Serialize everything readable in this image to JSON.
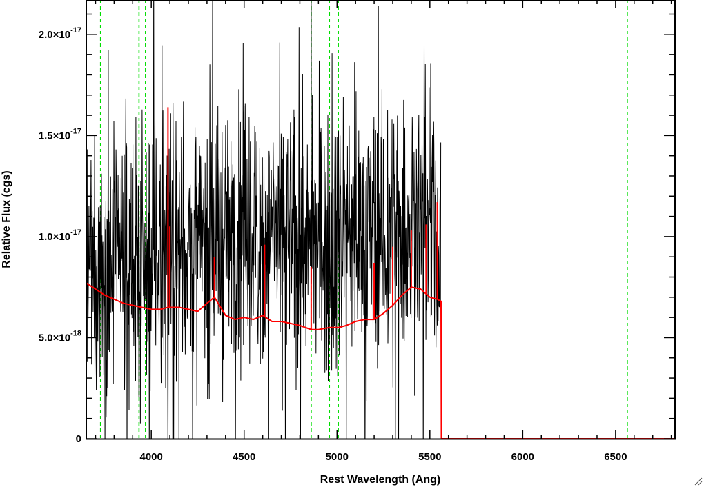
{
  "chart_data": {
    "type": "line",
    "xlabel": "Rest Wavelength (Ang)",
    "ylabel": "Relative Flux (cgs)",
    "xlim": [
      3650,
      6820
    ],
    "ylim": [
      0,
      2.17e-17
    ],
    "x_ticks": [
      {
        "value": 4000,
        "label": "4000"
      },
      {
        "value": 4500,
        "label": "4500"
      },
      {
        "value": 5000,
        "label": "5000"
      },
      {
        "value": 5500,
        "label": "5500"
      },
      {
        "value": 6000,
        "label": "6000"
      },
      {
        "value": 6500,
        "label": "6500"
      }
    ],
    "y_ticks": [
      {
        "value": 0,
        "mantissa": "0",
        "exponent": ""
      },
      {
        "value": 5e-18,
        "mantissa": "5.0×10",
        "exponent": "-18"
      },
      {
        "value": 1e-17,
        "mantissa": "1.0×10",
        "exponent": "-17"
      },
      {
        "value": 1.5e-17,
        "mantissa": "1.5×10",
        "exponent": "-17"
      },
      {
        "value": 2e-17,
        "mantissa": "2.0×10",
        "exponent": "-17"
      }
    ],
    "x_minor_step": 100,
    "y_minor_step": 1e-18,
    "grid": false,
    "reference_lines": {
      "color": "#00dd00",
      "style": "dashed",
      "x": [
        3727,
        3934,
        3969,
        4861,
        4959,
        5007,
        6563
      ]
    },
    "series": [
      {
        "color": "#000000",
        "style": "noisy-spectrum",
        "x_range": [
          3650,
          5560
        ],
        "continuum_x": [
          3650,
          3700,
          3800,
          3900,
          4000,
          4100,
          4200,
          4300,
          4400,
          4500,
          4600,
          4700,
          4800,
          4900,
          5000,
          5100,
          5200,
          5300,
          5400,
          5500,
          5560
        ],
        "continuum_y": [
          7.5e-18,
          8.2e-18,
          8.8e-18,
          8.6e-18,
          8.9e-18,
          9.3e-18,
          9.2e-18,
          9.6e-18,
          9.9e-18,
          1.02e-17,
          1e-17,
          9.8e-18,
          1e-17,
          9.6e-18,
          1e-17,
          9.9e-18,
          1e-17,
          9.8e-18,
          1.05e-17,
          1.08e-17,
          9.5e-18
        ],
        "noise_sigma": 3.2e-18
      },
      {
        "color": "#ff0000",
        "style": "model",
        "x": [
          3650,
          3700,
          3750,
          3800,
          3850,
          3900,
          3950,
          4000,
          4050,
          4090,
          4100,
          4150,
          4200,
          4250,
          4300,
          4340,
          4400,
          4450,
          4500,
          4550,
          4600,
          4650,
          4700,
          4750,
          4800,
          4861,
          4900,
          4959,
          5007,
          5050,
          5100,
          5150,
          5200,
          5250,
          5300,
          5350,
          5400,
          5450,
          5500,
          5540,
          5560,
          5562,
          5600,
          6000,
          6500,
          6820
        ],
        "y": [
          7.7e-18,
          7.4e-18,
          7.1e-18,
          6.9e-18,
          6.7e-18,
          6.6e-18,
          6.5e-18,
          6.4e-18,
          6.4e-18,
          6.5e-18,
          6.5e-18,
          6.5e-18,
          6.4e-18,
          6.3e-18,
          6.7e-18,
          7e-18,
          6.1e-18,
          5.9e-18,
          6e-18,
          5.9e-18,
          6.1e-18,
          5.8e-18,
          5.8e-18,
          5.7e-18,
          5.6e-18,
          5.4e-18,
          5.4e-18,
          5.5e-18,
          5.5e-18,
          5.6e-18,
          5.8e-18,
          5.9e-18,
          5.9e-18,
          6.2e-18,
          6.6e-18,
          7.1e-18,
          7.5e-18,
          7.4e-18,
          7e-18,
          6.9e-18,
          6.8e-18,
          0,
          0,
          0,
          0,
          0
        ],
        "spikes": [
          {
            "x": 4090,
            "y": 1.64e-17
          },
          {
            "x": 4100,
            "y": 1.05e-17
          },
          {
            "x": 4340,
            "y": 9e-18
          },
          {
            "x": 4610,
            "y": 9.6e-18
          },
          {
            "x": 4861,
            "y": 8.5e-18
          },
          {
            "x": 5200,
            "y": 8.7e-18
          },
          {
            "x": 5300,
            "y": 9.5e-18
          },
          {
            "x": 5400,
            "y": 1.03e-17
          },
          {
            "x": 5480,
            "y": 1.06e-17
          },
          {
            "x": 5540,
            "y": 1.17e-17
          }
        ]
      }
    ]
  }
}
